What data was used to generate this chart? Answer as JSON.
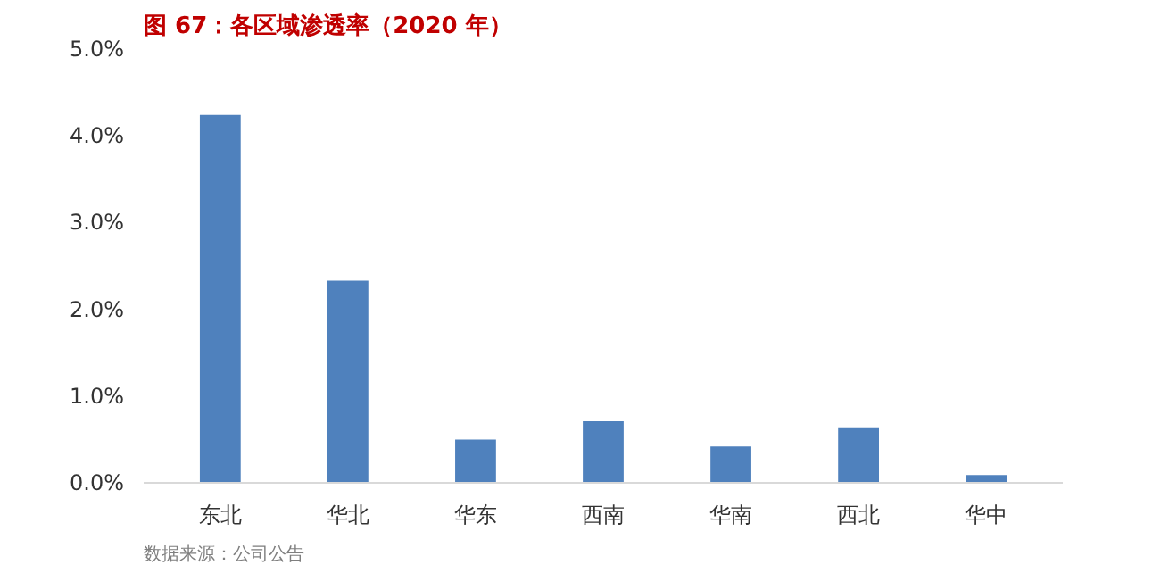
{
  "chart_data": {
    "type": "bar",
    "title": "图 67：各区域渗透率（2020 年）",
    "categories": [
      "东北",
      "华北",
      "华东",
      "西南",
      "华南",
      "西北",
      "华中"
    ],
    "values": [
      4.24,
      2.33,
      0.5,
      0.71,
      0.42,
      0.64,
      0.09
    ],
    "color": "#4f81bd",
    "ylim": [
      0,
      5
    ],
    "yticks": [
      {
        "value": 0,
        "label": "0.0%"
      },
      {
        "value": 1,
        "label": "1.0%"
      },
      {
        "value": 2,
        "label": "2.0%"
      },
      {
        "value": 3,
        "label": "3.0%"
      },
      {
        "value": 4,
        "label": "4.0%"
      },
      {
        "value": 5,
        "label": "5.0%"
      }
    ],
    "grid": false,
    "annotations": [
      "数据来源：公司公告"
    ]
  }
}
